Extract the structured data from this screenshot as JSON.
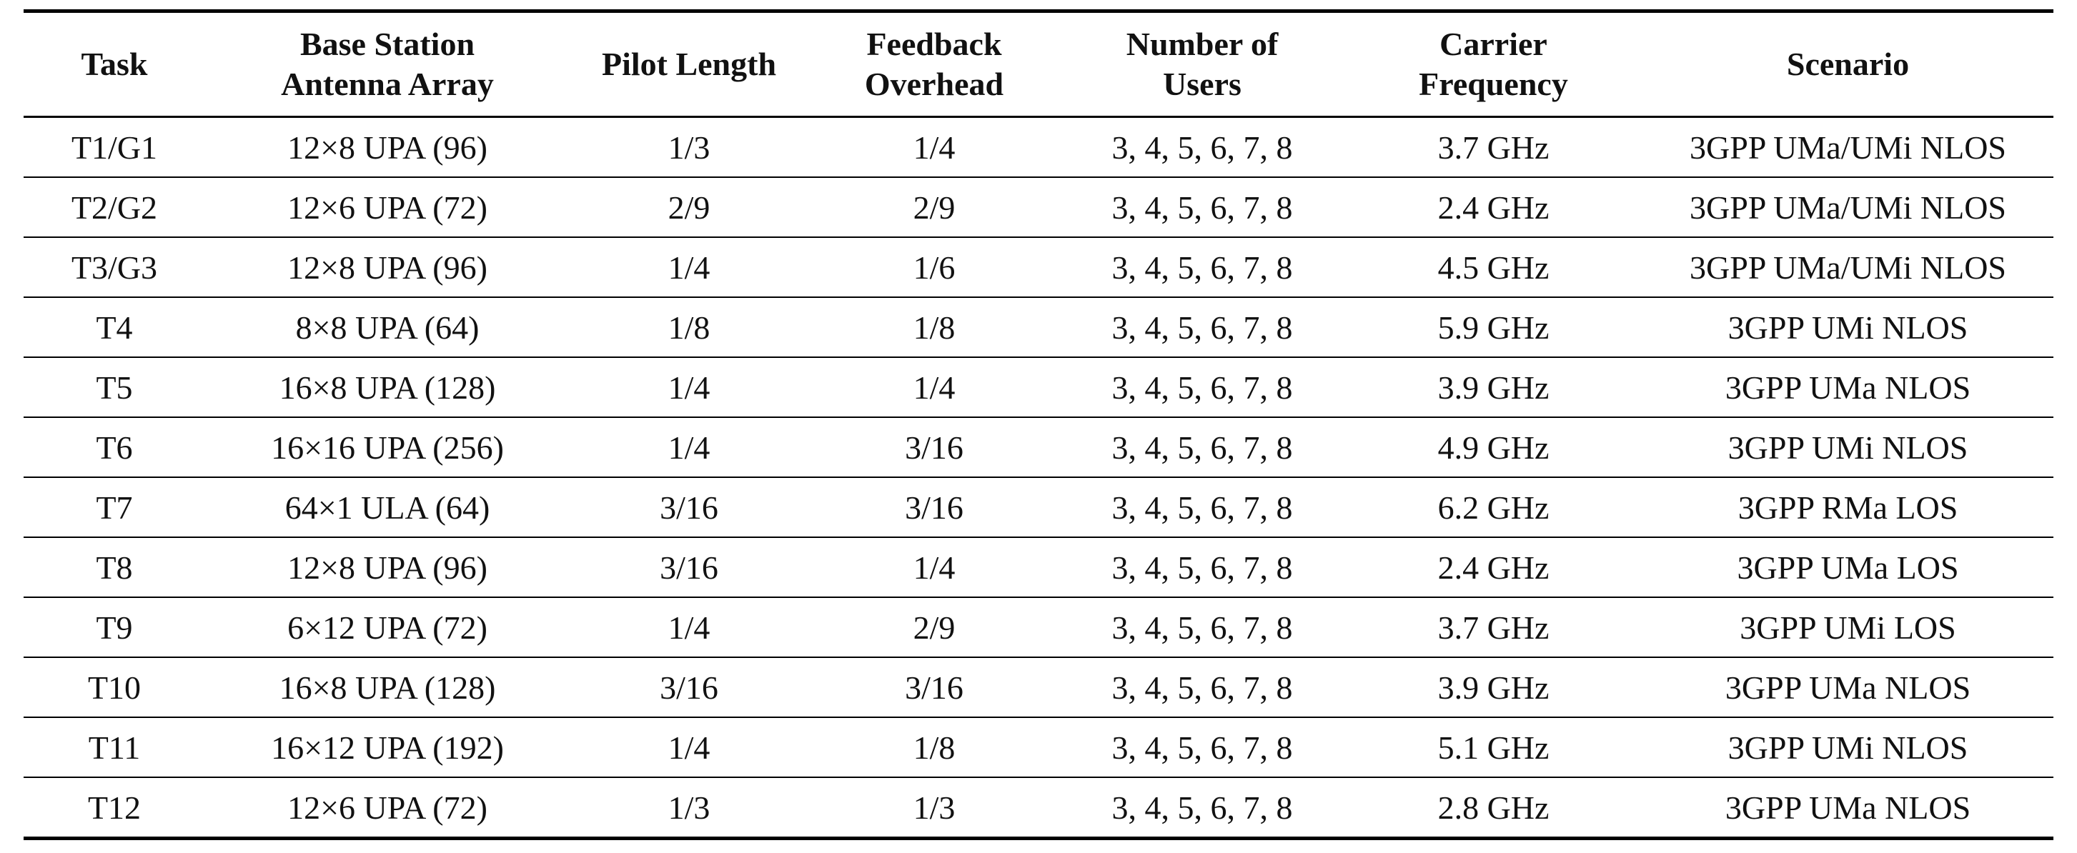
{
  "table": {
    "header": [
      [
        "Task"
      ],
      [
        "Base Station",
        "Antenna Array"
      ],
      [
        "Pilot Length"
      ],
      [
        "Feedback",
        "Overhead"
      ],
      [
        "Number of",
        "Users"
      ],
      [
        "Carrier",
        "Frequency"
      ],
      [
        "Scenario"
      ]
    ],
    "rows": [
      [
        "T1/G1",
        "12×8 UPA (96)",
        "1/3",
        "1/4",
        "3, 4, 5, 6, 7, 8",
        "3.7 GHz",
        "3GPP UMa/UMi NLOS"
      ],
      [
        "T2/G2",
        "12×6 UPA (72)",
        "2/9",
        "2/9",
        "3, 4, 5, 6, 7, 8",
        "2.4 GHz",
        "3GPP UMa/UMi NLOS"
      ],
      [
        "T3/G3",
        "12×8 UPA (96)",
        "1/4",
        "1/6",
        "3, 4, 5, 6, 7, 8",
        "4.5 GHz",
        "3GPP UMa/UMi NLOS"
      ],
      [
        "T4",
        "8×8 UPA (64)",
        "1/8",
        "1/8",
        "3, 4, 5, 6, 7, 8",
        "5.9 GHz",
        "3GPP UMi NLOS"
      ],
      [
        "T5",
        "16×8 UPA (128)",
        "1/4",
        "1/4",
        "3, 4, 5, 6, 7, 8",
        "3.9 GHz",
        "3GPP UMa NLOS"
      ],
      [
        "T6",
        "16×16 UPA (256)",
        "1/4",
        "3/16",
        "3, 4, 5, 6, 7, 8",
        "4.9 GHz",
        "3GPP UMi NLOS"
      ],
      [
        "T7",
        "64×1 ULA (64)",
        "3/16",
        "3/16",
        "3, 4, 5, 6, 7, 8",
        "6.2 GHz",
        "3GPP RMa LOS"
      ],
      [
        "T8",
        "12×8 UPA (96)",
        "3/16",
        "1/4",
        "3, 4, 5, 6, 7, 8",
        "2.4 GHz",
        "3GPP UMa LOS"
      ],
      [
        "T9",
        "6×12 UPA (72)",
        "1/4",
        "2/9",
        "3, 4, 5, 6, 7, 8",
        "3.7 GHz",
        "3GPP UMi LOS"
      ],
      [
        "T10",
        "16×8 UPA (128)",
        "3/16",
        "3/16",
        "3, 4, 5, 6, 7, 8",
        "3.9 GHz",
        "3GPP UMa NLOS"
      ],
      [
        "T11",
        "16×12 UPA (192)",
        "1/4",
        "1/8",
        "3, 4, 5, 6, 7, 8",
        "5.1 GHz",
        "3GPP UMi NLOS"
      ],
      [
        "T12",
        "12×6 UPA (72)",
        "1/3",
        "1/3",
        "3, 4, 5, 6, 7, 8",
        "2.8 GHz",
        "3GPP UMa NLOS"
      ]
    ]
  }
}
